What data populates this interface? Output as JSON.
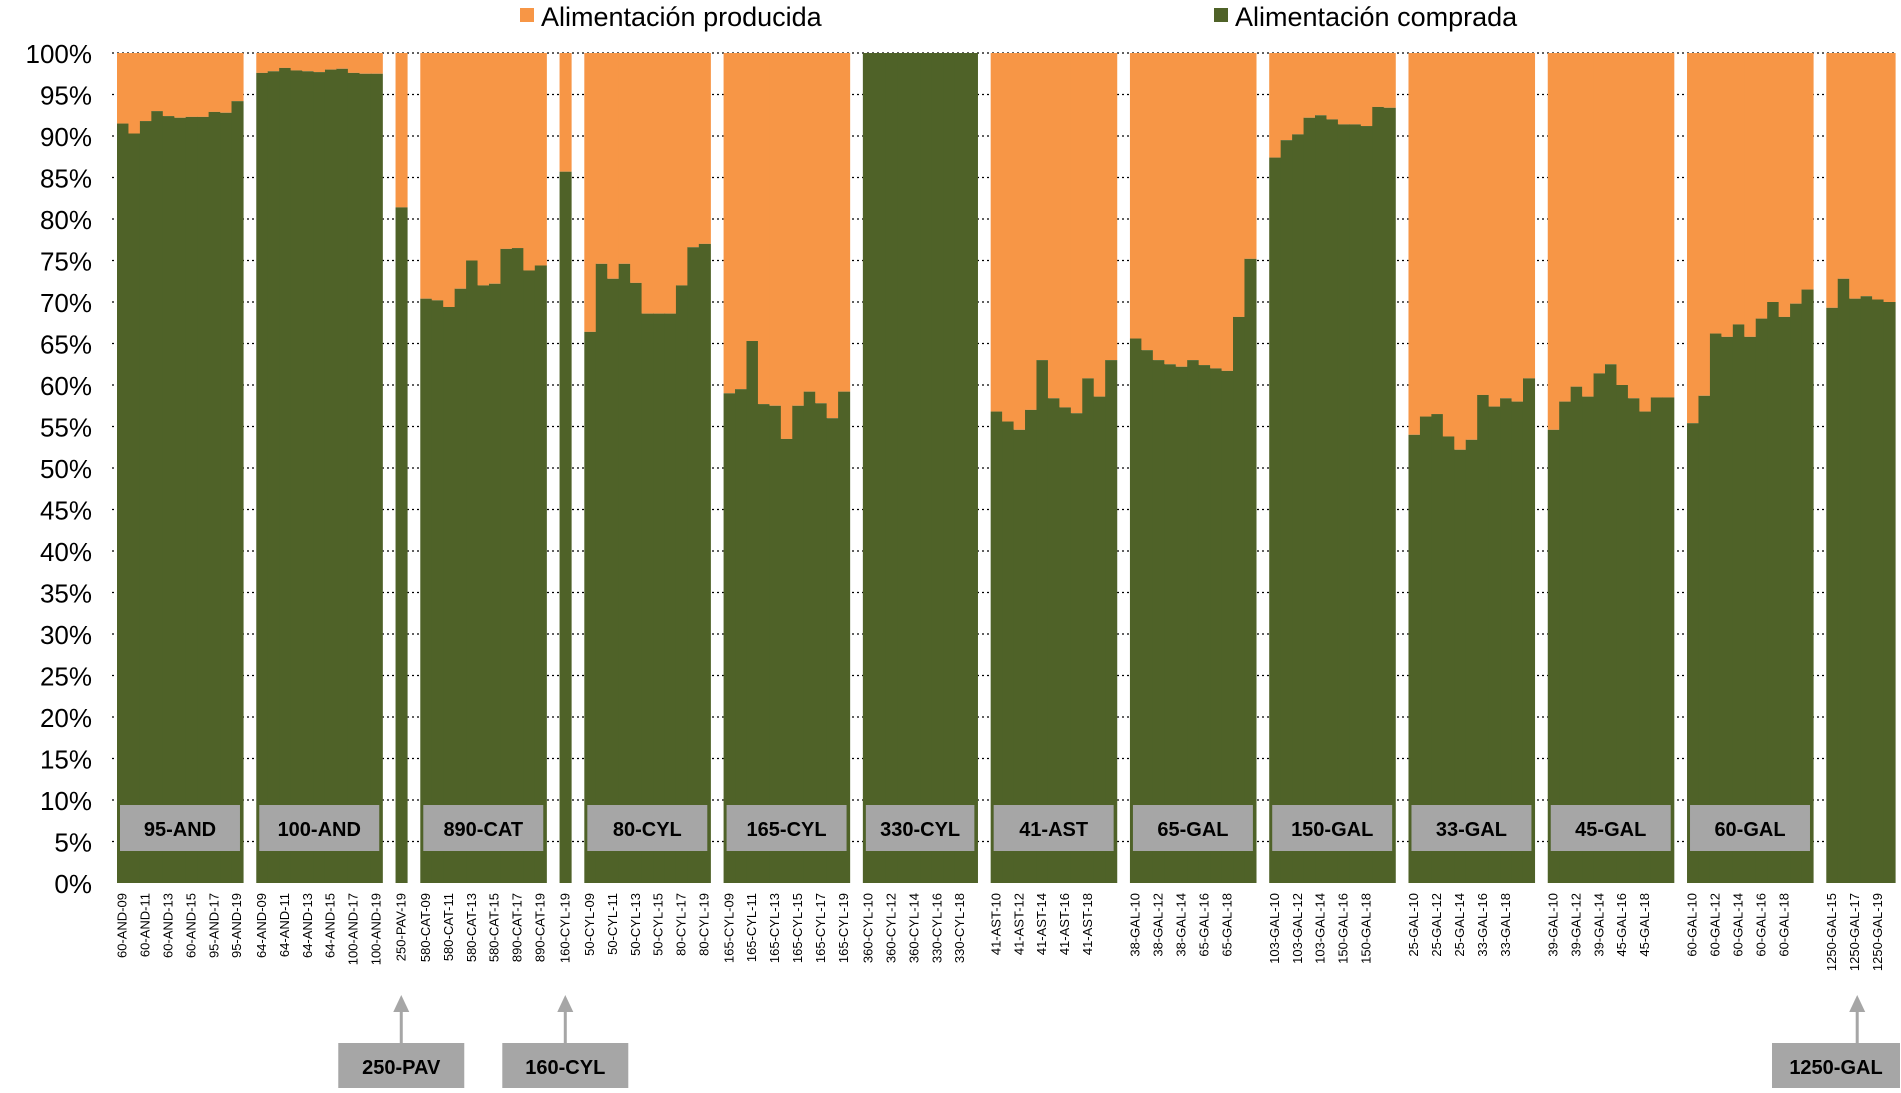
{
  "colors": {
    "produced": "#F79646",
    "purchased": "#4F6228",
    "label_box": "#A6A6A6",
    "arrow": "#A6A6A6"
  },
  "legend": {
    "produced_label": "Alimentación producida",
    "purchased_label": "Alimentación comprada",
    "placement": "top"
  },
  "chart_data": {
    "type": "bar",
    "stacked": "percent",
    "ylim": [
      0,
      100
    ],
    "y_ticks": [
      "0%",
      "5%",
      "10%",
      "15%",
      "20%",
      "25%",
      "30%",
      "35%",
      "40%",
      "45%",
      "50%",
      "55%",
      "60%",
      "65%",
      "70%",
      "75%",
      "80%",
      "85%",
      "90%",
      "95%",
      "100%"
    ],
    "grid": "horizontal dotted",
    "series": [
      {
        "name": "Alimentación comprada",
        "color": "#4F6228"
      },
      {
        "name": "Alimentación producida",
        "color": "#F79646"
      }
    ],
    "groups": [
      {
        "label": "95-AND",
        "x_labels": [
          "60-AND-09",
          "60-AND-11",
          "60-AND-13",
          "60-AND-15",
          "95-AND-17",
          "95-AND-19"
        ],
        "values": [
          91.5,
          90.3,
          91.8,
          93.0,
          92.4,
          92.2,
          92.3,
          92.3,
          92.9,
          92.8,
          94.2
        ]
      },
      {
        "label": "100-AND",
        "x_labels": [
          "64-AND-09",
          "64-AND-11",
          "64-AND-13",
          "64-AND-15",
          "100-AND-17",
          "100-AND-19"
        ],
        "values": [
          97.6,
          97.8,
          98.2,
          97.9,
          97.8,
          97.7,
          98.0,
          98.1,
          97.6,
          97.5,
          97.5
        ]
      },
      {
        "label": "250-PAV",
        "x_labels": [
          "250-PAV-19"
        ],
        "values": [
          81.4
        ],
        "callout": "below"
      },
      {
        "label": "890-CAT",
        "x_labels": [
          "580-CAT-09",
          "580-CAT-11",
          "580-CAT-13",
          "580-CAT-15",
          "890-CAT-17",
          "890-CAT-19"
        ],
        "values": [
          70.4,
          70.2,
          69.4,
          71.6,
          75.0,
          72.0,
          72.2,
          76.4,
          76.5,
          73.8,
          74.4
        ]
      },
      {
        "label": "160-CYL",
        "x_labels": [
          "160-CYL-19"
        ],
        "values": [
          85.7
        ],
        "callout": "below"
      },
      {
        "label": "80-CYL",
        "x_labels": [
          "50-CYL-09",
          "50-CYL-11",
          "50-CYL-13",
          "50-CYL-15",
          "80-CYL-17",
          "80-CYL-19"
        ],
        "values": [
          66.4,
          74.6,
          72.8,
          74.6,
          72.3,
          68.6,
          68.6,
          68.6,
          72.0,
          76.6,
          77.0
        ]
      },
      {
        "label": "165-CYL",
        "x_labels": [
          "165-CYL-09",
          "165-CYL-11",
          "165-CYL-13",
          "165-CYL-15",
          "165-CYL-17",
          "165-CYL-19"
        ],
        "values": [
          59.0,
          59.5,
          65.3,
          57.7,
          57.5,
          53.5,
          57.5,
          59.2,
          57.8,
          56.0,
          59.2
        ]
      },
      {
        "label": "330-CYL",
        "x_labels": [
          "360-CYL-10",
          "360-CYL-12",
          "360-CYL-14",
          "330-CYL-16",
          "330-CYL-18"
        ],
        "values": [
          100,
          100,
          100,
          100,
          100,
          100,
          100,
          100,
          100,
          100
        ]
      },
      {
        "label": "41-AST",
        "x_labels": [
          "41-AST-10",
          "41-AST-12",
          "41-AST-14",
          "41-AST-16",
          "41-AST-18"
        ],
        "values": [
          56.8,
          55.6,
          54.6,
          57.0,
          63.0,
          58.4,
          57.3,
          56.6,
          60.8,
          58.6,
          63.0
        ]
      },
      {
        "label": "65-GAL",
        "x_labels": [
          "38-GAL-10",
          "38-GAL-12",
          "38-GAL-14",
          "65-GAL-16",
          "65-GAL-18"
        ],
        "values": [
          65.6,
          64.2,
          63.0,
          62.5,
          62.2,
          63.0,
          62.4,
          62.0,
          61.7,
          68.2,
          75.2
        ]
      },
      {
        "label": "150-GAL",
        "x_labels": [
          "103-GAL-10",
          "103-GAL-12",
          "103-GAL-14",
          "150-GAL-16",
          "150-GAL-18"
        ],
        "values": [
          87.4,
          89.5,
          90.2,
          92.2,
          92.5,
          92.0,
          91.4,
          91.4,
          91.2,
          93.5,
          93.4
        ]
      },
      {
        "label": "33-GAL",
        "x_labels": [
          "25-GAL-10",
          "25-GAL-12",
          "25-GAL-14",
          "33-GAL-16",
          "33-GAL-18"
        ],
        "values": [
          54.0,
          56.2,
          56.5,
          53.8,
          52.2,
          53.4,
          58.8,
          57.4,
          58.4,
          58.0,
          60.8
        ]
      },
      {
        "label": "45-GAL",
        "x_labels": [
          "39-GAL-10",
          "39-GAL-12",
          "39-GAL-14",
          "45-GAL-16",
          "45-GAL-18"
        ],
        "values": [
          54.6,
          58.0,
          59.8,
          58.6,
          61.4,
          62.5,
          60.0,
          58.4,
          56.8,
          58.5,
          58.5
        ]
      },
      {
        "label": "60-GAL",
        "x_labels": [
          "60-GAL-10",
          "60-GAL-12",
          "60-GAL-14",
          "60-GAL-16",
          "60-GAL-18"
        ],
        "values": [
          55.4,
          58.7,
          66.2,
          65.8,
          67.3,
          65.8,
          68.0,
          70.0,
          68.2,
          69.8,
          71.5
        ]
      },
      {
        "label": "1250-GAL",
        "x_labels": [
          "1250-GAL-15",
          "1250-GAL-17",
          "1250-GAL-19"
        ],
        "values": [
          69.3,
          72.8,
          70.4,
          70.7,
          70.3,
          70.0
        ],
        "callout": "below"
      }
    ]
  }
}
